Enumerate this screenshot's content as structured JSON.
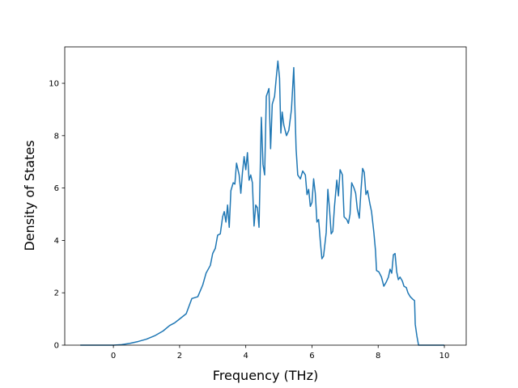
{
  "chart_data": {
    "type": "line",
    "xlabel": "Frequency (THz)",
    "ylabel": "Density of States",
    "color": "#1f77b4",
    "x": [
      -1.0,
      0.0,
      0.25,
      0.5,
      0.75,
      1.0,
      1.25,
      1.5,
      1.7,
      1.85,
      2.0,
      2.2,
      2.37,
      2.55,
      2.7,
      2.8,
      2.93,
      3.0,
      3.08,
      3.15,
      3.23,
      3.3,
      3.35,
      3.4,
      3.45,
      3.5,
      3.55,
      3.62,
      3.67,
      3.72,
      3.8,
      3.85,
      3.9,
      3.95,
      4.0,
      4.05,
      4.1,
      4.15,
      4.2,
      4.25,
      4.3,
      4.35,
      4.4,
      4.47,
      4.52,
      4.57,
      4.62,
      4.7,
      4.75,
      4.8,
      4.87,
      4.92,
      4.97,
      5.02,
      5.06,
      5.1,
      5.15,
      5.23,
      5.3,
      5.38,
      5.45,
      5.52,
      5.57,
      5.65,
      5.72,
      5.8,
      5.85,
      5.9,
      5.95,
      6.0,
      6.05,
      6.1,
      6.15,
      6.2,
      6.25,
      6.3,
      6.35,
      6.43,
      6.48,
      6.53,
      6.58,
      6.63,
      6.68,
      6.75,
      6.8,
      6.85,
      6.92,
      6.97,
      7.05,
      7.1,
      7.15,
      7.2,
      7.27,
      7.32,
      7.37,
      7.43,
      7.48,
      7.53,
      7.58,
      7.63,
      7.68,
      7.75,
      7.8,
      7.87,
      7.92,
      7.95,
      8.02,
      8.1,
      8.17,
      8.24,
      8.31,
      8.36,
      8.41,
      8.46,
      8.51,
      8.56,
      8.61,
      8.66,
      8.73,
      8.78,
      8.85,
      8.9,
      8.97,
      9.05,
      9.1,
      9.12,
      9.17,
      9.22,
      10.0
    ],
    "values": [
      0,
      0,
      0.02,
      0.07,
      0.14,
      0.23,
      0.36,
      0.54,
      0.75,
      0.85,
      1.0,
      1.2,
      1.78,
      1.85,
      2.3,
      2.75,
      3.05,
      3.5,
      3.7,
      4.2,
      4.25,
      4.9,
      5.1,
      4.7,
      5.35,
      4.5,
      5.9,
      6.2,
      6.15,
      6.95,
      6.5,
      5.8,
      6.6,
      7.2,
      6.7,
      7.35,
      6.3,
      6.5,
      6.2,
      4.55,
      5.35,
      5.25,
      4.5,
      8.7,
      6.9,
      6.5,
      9.5,
      9.8,
      7.5,
      9.2,
      9.5,
      10.2,
      10.85,
      10.2,
      8.1,
      8.9,
      8.4,
      8.0,
      8.2,
      9.0,
      10.6,
      7.5,
      6.5,
      6.35,
      6.65,
      6.5,
      5.75,
      5.95,
      5.3,
      5.45,
      6.35,
      5.8,
      4.7,
      4.8,
      4.0,
      3.3,
      3.4,
      4.3,
      5.95,
      5.2,
      4.25,
      4.35,
      5.3,
      6.3,
      5.7,
      6.7,
      6.5,
      4.9,
      4.8,
      4.65,
      5.0,
      6.2,
      6.0,
      5.8,
      5.2,
      4.85,
      5.9,
      6.75,
      6.6,
      5.75,
      5.9,
      5.4,
      5.1,
      4.3,
      3.6,
      2.85,
      2.8,
      2.6,
      2.25,
      2.4,
      2.6,
      2.9,
      2.75,
      3.45,
      3.5,
      2.8,
      2.5,
      2.6,
      2.45,
      2.25,
      2.2,
      2.0,
      1.85,
      1.75,
      1.7,
      0.8,
      0.35,
      0,
      0
    ],
    "xlim": [
      -1.47,
      10.66
    ],
    "xticks": [
      0,
      2,
      4,
      6,
      8,
      10
    ],
    "ylim": [
      0,
      11.39
    ],
    "yticks": [
      0,
      2,
      4,
      6,
      8,
      10
    ]
  }
}
